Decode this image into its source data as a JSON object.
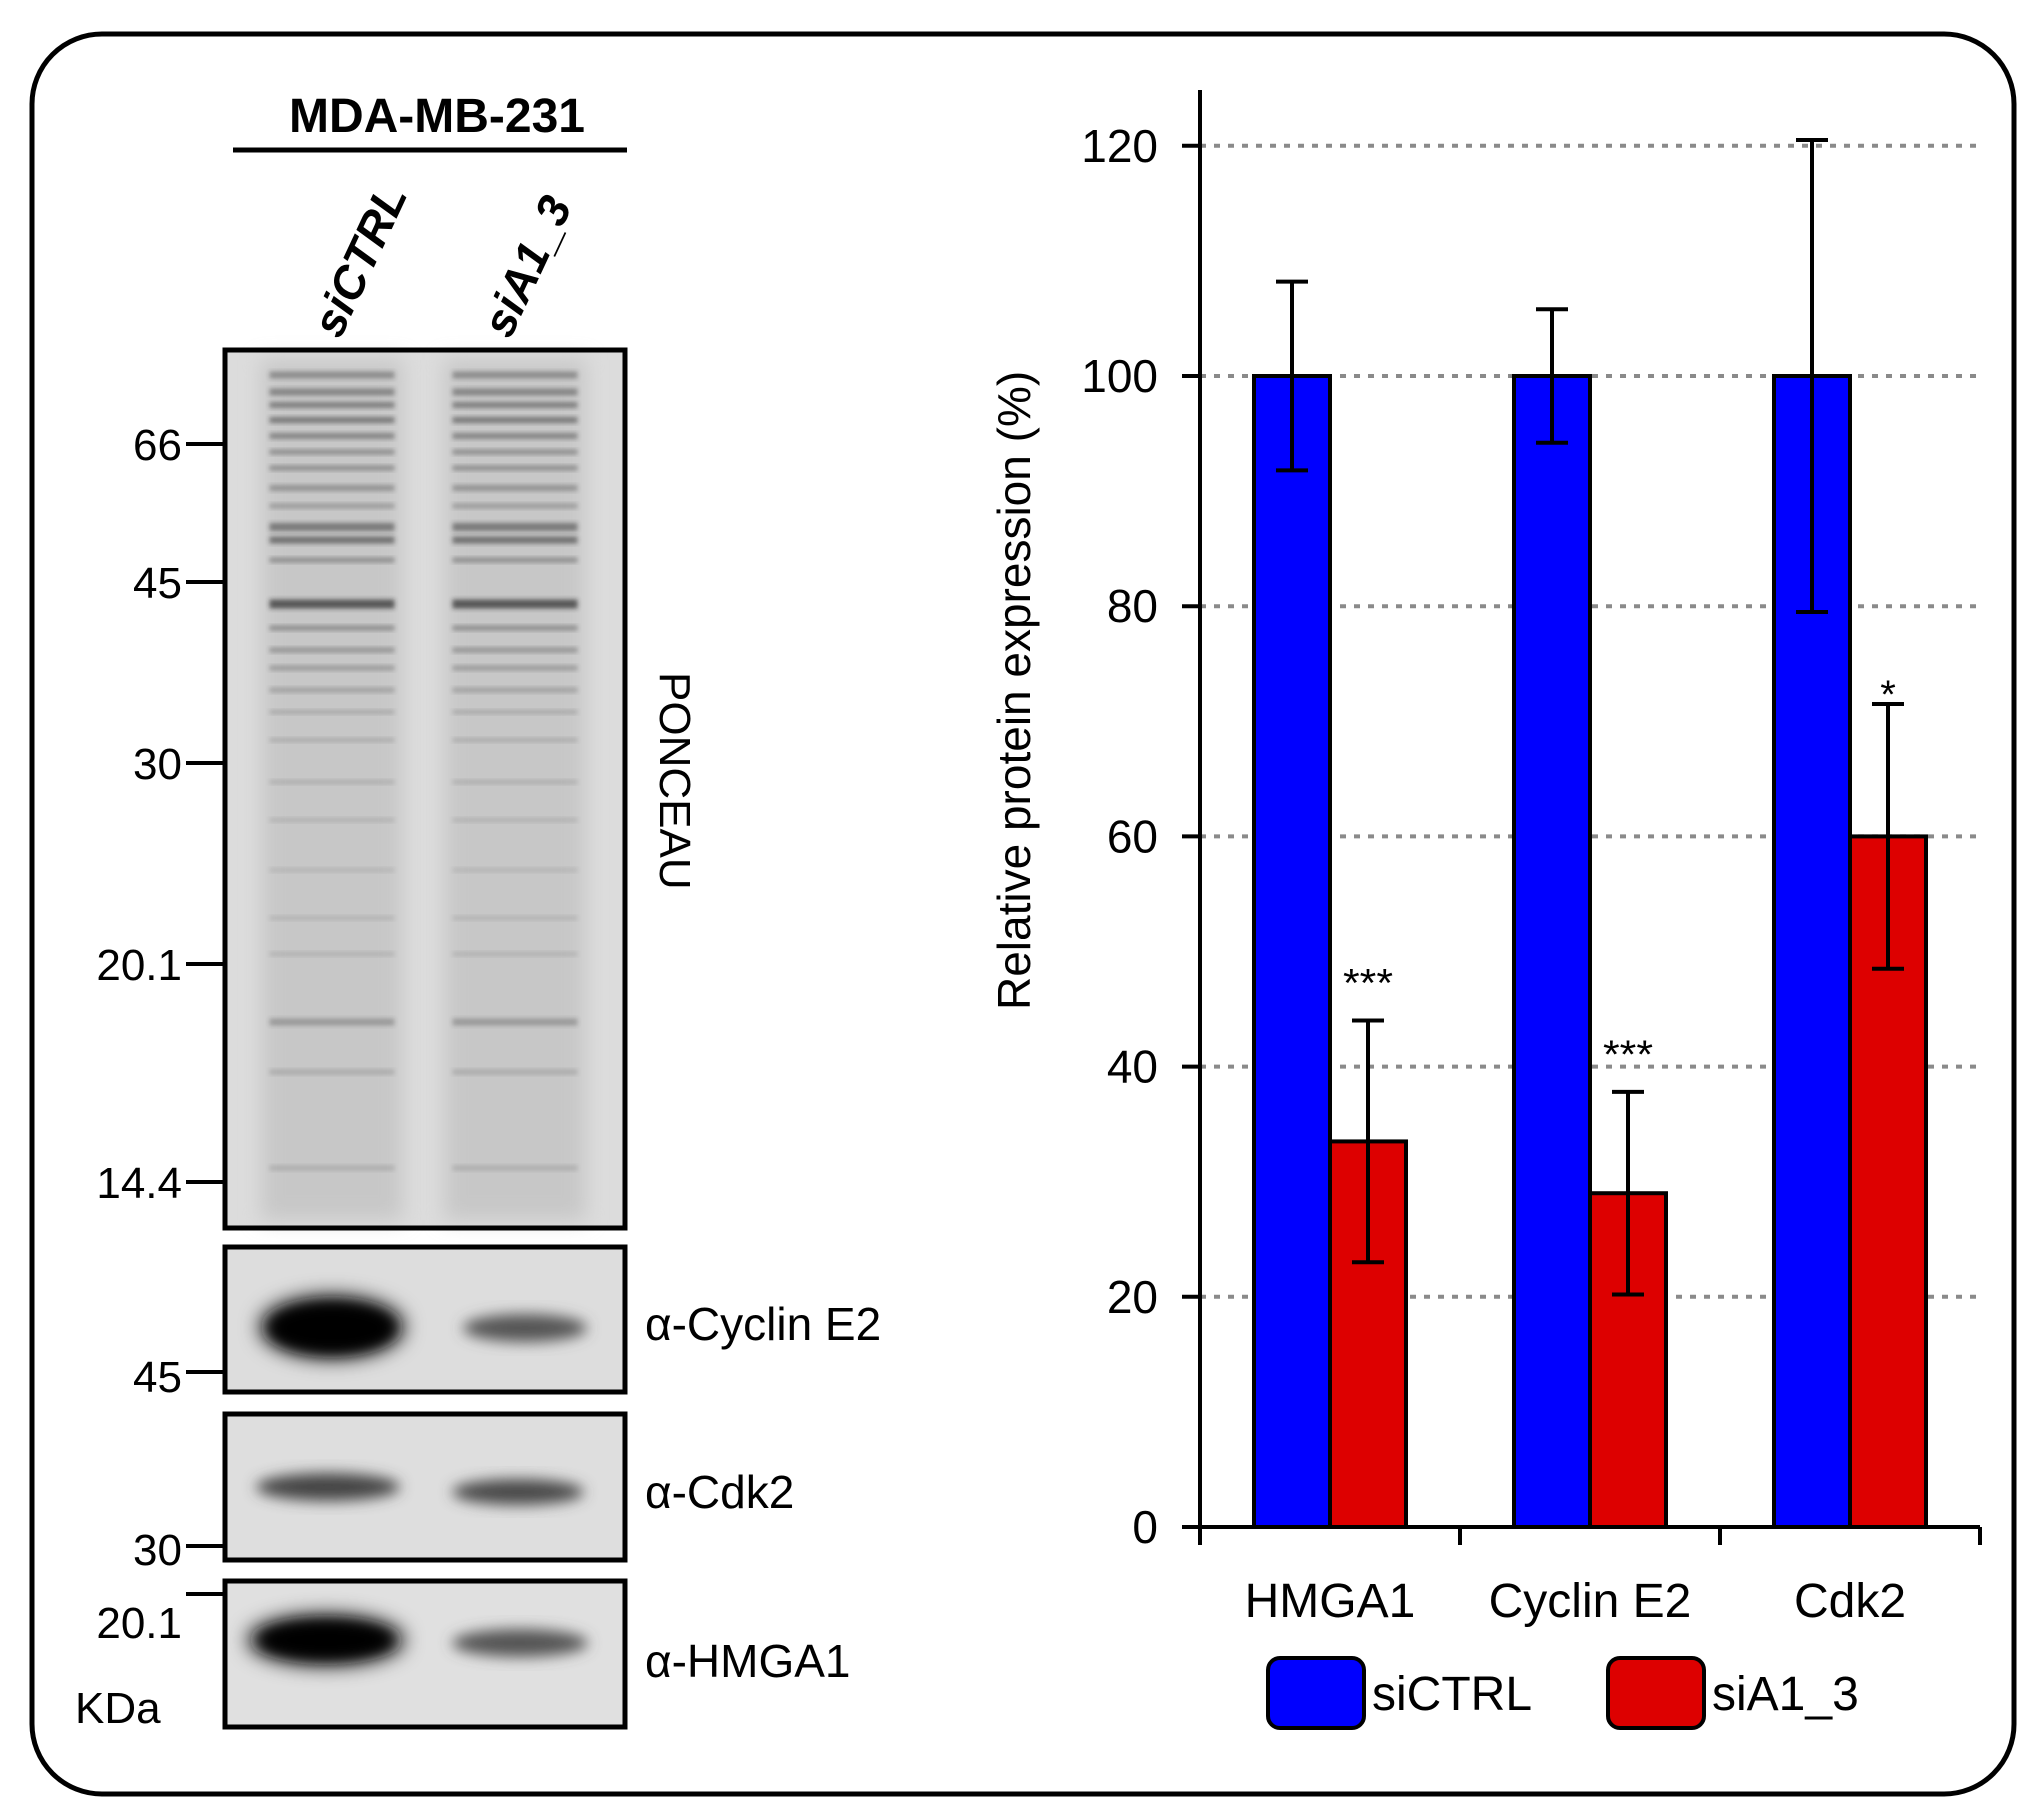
{
  "blot": {
    "cell_line": "MDA-MB-231",
    "lanes": [
      "siCTRL",
      "siA1_3"
    ],
    "panels": [
      {
        "label": "PONCEAU",
        "markers": [
          "66",
          "45",
          "30",
          "20.1",
          "14.4"
        ]
      },
      {
        "label": "α-Cyclin E2",
        "markers": [
          "45"
        ]
      },
      {
        "label": "α-Cdk2",
        "markers": [
          "30"
        ]
      },
      {
        "label": "α-HMGA1",
        "markers": [
          "20.1"
        ]
      }
    ],
    "unit_label": "KDa"
  },
  "chart_data": {
    "type": "bar",
    "title": "",
    "xlabel": "",
    "ylabel": "Relative protein expression (%)",
    "ylim": [
      0,
      120
    ],
    "yticks": [
      "0",
      "20",
      "40",
      "60",
      "80",
      "100",
      "120"
    ],
    "grid": true,
    "categories": [
      "HMGA1",
      "Cyclin E2",
      "Cdk2"
    ],
    "series": [
      {
        "name": "siCTRL",
        "color": "#0000ff",
        "values": [
          100,
          100,
          100
        ],
        "errors": [
          8.2,
          5.8,
          20.5
        ],
        "significance": [
          "",
          "",
          ""
        ]
      },
      {
        "name": "siA1_3",
        "color": "#dd0000",
        "values": [
          33.5,
          29,
          60
        ],
        "errors": [
          10.5,
          8.8,
          11.5
        ],
        "significance": [
          "***",
          "***",
          "*"
        ]
      }
    ],
    "legend": "bottom"
  }
}
